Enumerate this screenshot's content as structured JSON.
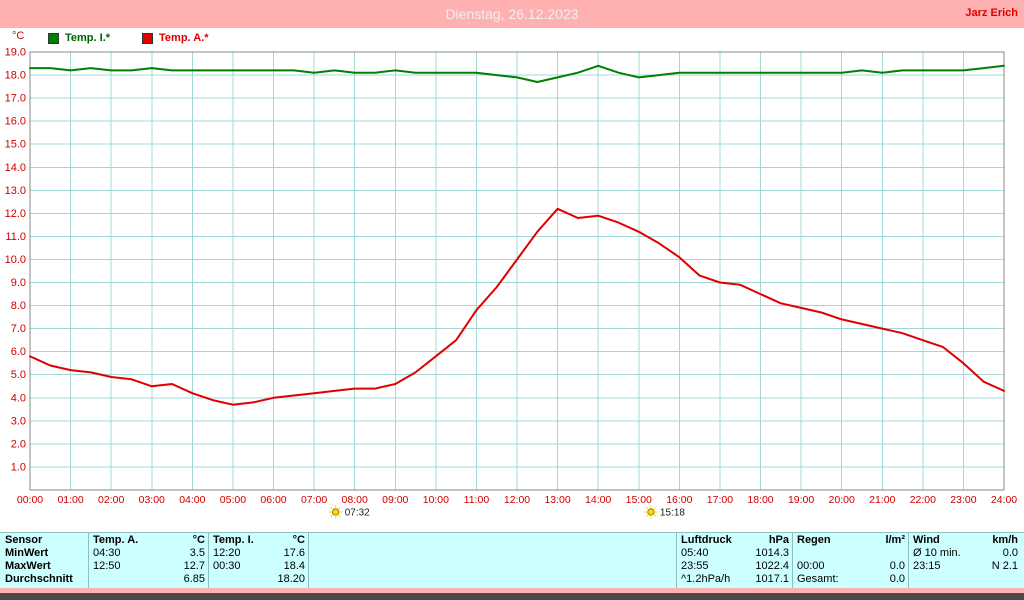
{
  "header": {
    "date_title": "Dienstag, 26.12.2023",
    "station_name": "Jarz Erich"
  },
  "colors": {
    "titlebar_bg": "#ffb0b0",
    "title_text": "#f0f0f0",
    "station_text": "#e00000",
    "chart_bg": "#ffffff",
    "grid": "#a0d8d8",
    "frame": "#888888",
    "tick_text": "#d00000",
    "temp_i": "#008000",
    "temp_a": "#e00000",
    "table_bg": "#ccffff",
    "footer_bg": "#ffb0b0",
    "bottom_bar": "#4a4a4a",
    "sun": "#ffd800"
  },
  "chart_data": {
    "type": "line",
    "title": "",
    "xlabel": "",
    "ylabel": "°C",
    "xlim": [
      0,
      24
    ],
    "ylim": [
      0,
      19
    ],
    "grid": true,
    "legend_position": "top-left",
    "y_ticks": [
      1,
      2,
      3,
      4,
      5,
      6,
      7,
      8,
      9,
      10,
      11,
      12,
      13,
      14,
      15,
      16,
      17,
      18,
      19
    ],
    "x_tick_labels": [
      "00:00",
      "01:00",
      "02:00",
      "03:00",
      "04:00",
      "05:00",
      "06:00",
      "07:00",
      "08:00",
      "09:00",
      "10:00",
      "11:00",
      "12:00",
      "13:00",
      "14:00",
      "15:00",
      "16:00",
      "17:00",
      "18:00",
      "19:00",
      "20:00",
      "21:00",
      "22:00",
      "23:00",
      "24:00"
    ],
    "x": [
      0,
      0.5,
      1,
      1.5,
      2,
      2.5,
      3,
      3.5,
      4,
      4.5,
      5,
      5.5,
      6,
      6.5,
      7,
      7.5,
      8,
      8.5,
      9,
      9.5,
      10,
      10.5,
      11,
      11.5,
      12,
      12.5,
      13,
      13.5,
      14,
      14.5,
      15,
      15.5,
      16,
      16.5,
      17,
      17.5,
      18,
      18.5,
      19,
      19.5,
      20,
      20.5,
      21,
      21.5,
      22,
      22.5,
      23,
      23.5,
      24
    ],
    "series": [
      {
        "name": "Temp. I.*",
        "color": "#008000",
        "values": [
          18.3,
          18.3,
          18.2,
          18.3,
          18.2,
          18.2,
          18.3,
          18.2,
          18.2,
          18.2,
          18.2,
          18.2,
          18.2,
          18.2,
          18.1,
          18.2,
          18.1,
          18.1,
          18.2,
          18.1,
          18.1,
          18.1,
          18.1,
          18.0,
          17.9,
          17.7,
          17.9,
          18.1,
          18.4,
          18.1,
          17.9,
          18.0,
          18.1,
          18.1,
          18.1,
          18.1,
          18.1,
          18.1,
          18.1,
          18.1,
          18.1,
          18.2,
          18.1,
          18.2,
          18.2,
          18.2,
          18.2,
          18.3,
          18.4
        ]
      },
      {
        "name": "Temp. A.*",
        "color": "#e00000",
        "values": [
          5.8,
          5.4,
          5.2,
          5.1,
          4.9,
          4.8,
          4.5,
          4.6,
          4.2,
          3.9,
          3.7,
          3.8,
          4.0,
          4.1,
          4.2,
          4.3,
          4.4,
          4.4,
          4.6,
          5.1,
          5.8,
          6.5,
          7.8,
          8.8,
          10.0,
          11.2,
          12.2,
          11.8,
          11.9,
          11.6,
          11.2,
          10.7,
          10.1,
          9.3,
          9.0,
          8.9,
          8.5,
          8.1,
          7.9,
          7.7,
          7.4,
          7.2,
          7.0,
          6.8,
          6.5,
          6.2,
          5.5,
          4.7,
          4.3
        ]
      }
    ],
    "sun_markers": [
      {
        "hour": 7.533,
        "label": "07:32"
      },
      {
        "hour": 15.3,
        "label": "15:18"
      }
    ]
  },
  "table": {
    "row_header": "Sensor",
    "rows": [
      "MinWert",
      "MaxWert",
      "Durchschnitt"
    ],
    "columns": [
      {
        "name": "Temp. A.",
        "unit": "°C",
        "cells": [
          [
            "04:30",
            "3.5"
          ],
          [
            "12:50",
            "12.7"
          ],
          [
            "",
            "6.85"
          ]
        ]
      },
      {
        "name": "Temp. I.",
        "unit": "°C",
        "cells": [
          [
            "12:20",
            "17.6"
          ],
          [
            "00:30",
            "18.4"
          ],
          [
            "",
            "18.20"
          ]
        ]
      },
      {
        "name": "Luftdruck",
        "unit": "hPa",
        "cells": [
          [
            "05:40",
            "1014.3"
          ],
          [
            "23:55",
            "1022.4"
          ],
          [
            "^1.2hPa/h",
            "1017.1"
          ]
        ]
      },
      {
        "name": "Regen",
        "unit": "l/m²",
        "cells": [
          [
            "",
            ""
          ],
          [
            "00:00",
            "0.0"
          ],
          [
            "Gesamt:",
            "0.0"
          ]
        ]
      },
      {
        "name": "Wind",
        "unit": "km/h",
        "cells": [
          [
            "Ø 10 min.",
            "0.0"
          ],
          [
            "23:15",
            "N 2.1"
          ],
          [
            "",
            ""
          ]
        ]
      }
    ]
  }
}
